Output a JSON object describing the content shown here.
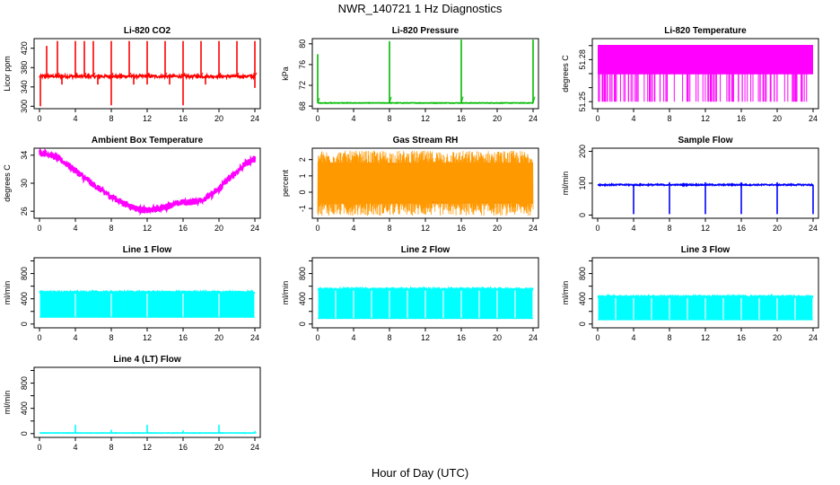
{
  "figure": {
    "title": "NWR_140721  1 Hz Diagnostics",
    "xlabel": "Hour of Day (UTC)"
  },
  "chart_data": [
    {
      "id": "co2",
      "type": "line",
      "title": "Li-820 CO2",
      "ylabel": "Licor ppm",
      "color": "#ff0000",
      "xlim": [
        0,
        24
      ],
      "ylim": [
        295,
        440
      ],
      "xticks": [
        0,
        4,
        8,
        12,
        16,
        20,
        24
      ],
      "yticks": [
        300,
        340,
        380,
        420
      ],
      "baseline": 362,
      "noise": 3,
      "spikes_up": [
        [
          0.8,
          425
        ],
        [
          2.0,
          435
        ],
        [
          4.0,
          435
        ],
        [
          5.0,
          435
        ],
        [
          6.0,
          435
        ],
        [
          8.0,
          435
        ],
        [
          10.0,
          435
        ],
        [
          12.0,
          435
        ],
        [
          14.0,
          435
        ],
        [
          16.0,
          435
        ],
        [
          18.0,
          435
        ],
        [
          20.0,
          435
        ],
        [
          22.0,
          435
        ],
        [
          24.0,
          435
        ]
      ],
      "spikes_down": [
        [
          0.1,
          300
        ],
        [
          2.5,
          345
        ],
        [
          6.5,
          345
        ],
        [
          8.0,
          302
        ],
        [
          10.5,
          345
        ],
        [
          12.0,
          345
        ],
        [
          14.5,
          345
        ],
        [
          16.0,
          302
        ],
        [
          18.5,
          345
        ],
        [
          24.0,
          338
        ]
      ]
    },
    {
      "id": "pressure",
      "type": "line",
      "title": "Li-820 Pressure",
      "ylabel": "kPa",
      "color": "#00bb00",
      "xlim": [
        0,
        24
      ],
      "ylim": [
        67.5,
        81
      ],
      "xticks": [
        0,
        4,
        8,
        12,
        16,
        20,
        24
      ],
      "yticks": [
        68,
        72,
        76,
        80
      ],
      "baseline": 68.6,
      "noise": 0.05,
      "spikes_up": [
        [
          0.0,
          78
        ],
        [
          8.0,
          80.5
        ],
        [
          16.0,
          80.8
        ],
        [
          24.0,
          80.8
        ]
      ],
      "spikes_down": []
    },
    {
      "id": "temperature",
      "type": "line",
      "title": "Li-820 Temperature",
      "ylabel": "degrees C",
      "color": "#ff00ff",
      "xlim": [
        0,
        24
      ],
      "ylim": [
        51.245,
        51.295
      ],
      "xticks": [
        0,
        4,
        8,
        12,
        16,
        20,
        24
      ],
      "yticks": [
        51.25,
        51.26,
        51.27,
        51.28,
        51.29
      ],
      "ytick_labels": [
        "51.25",
        "",
        "",
        "51.28",
        ""
      ],
      "levels": [
        51.25,
        51.27,
        51.29
      ]
    },
    {
      "id": "ambient",
      "type": "line",
      "title": "Ambient Box Temperature",
      "ylabel": "degrees C",
      "color": "#ff00ff",
      "xlim": [
        0,
        24
      ],
      "ylim": [
        25,
        35
      ],
      "xticks": [
        0,
        4,
        8,
        12,
        16,
        20,
        24
      ],
      "yticks": [
        26,
        30,
        34
      ],
      "curve_x": [
        0,
        1,
        2,
        3,
        4,
        5,
        6,
        7,
        8,
        9,
        10,
        11,
        12,
        13,
        14,
        15,
        16,
        17,
        18,
        19,
        20,
        21,
        22,
        23,
        24
      ],
      "curve_y": [
        34.3,
        34.2,
        33.6,
        32.8,
        31.8,
        30.8,
        29.8,
        28.9,
        28.1,
        27.4,
        26.8,
        26.3,
        26.1,
        26.3,
        26.6,
        27.0,
        27.3,
        27.3,
        27.6,
        28.2,
        29.2,
        30.5,
        31.7,
        32.8,
        33.5
      ],
      "noise": 0.45
    },
    {
      "id": "rh",
      "type": "line",
      "title": "Gas Stream RH",
      "ylabel": "percent",
      "color": "#ff9900",
      "xlim": [
        0,
        24
      ],
      "ylim": [
        -1.6,
        2.7
      ],
      "xticks": [
        0,
        4,
        8,
        12,
        16,
        20,
        24
      ],
      "yticks": [
        -1,
        0,
        1,
        2
      ],
      "band": [
        -1.0,
        2.1
      ]
    },
    {
      "id": "sample",
      "type": "line",
      "title": "Sample Flow",
      "ylabel": "ml/min",
      "color": "#0000ff",
      "xlim": [
        0,
        24
      ],
      "ylim": [
        -10,
        210
      ],
      "xticks": [
        0,
        4,
        8,
        12,
        16,
        20,
        24
      ],
      "yticks": [
        0,
        100,
        200
      ],
      "ytick_labels": [
        "0",
        "100",
        "200"
      ],
      "baseline": 95,
      "noise": 2,
      "spikes_up": [
        [
          8.0,
          103
        ],
        [
          12.0,
          103
        ],
        [
          16.0,
          103
        ],
        [
          20.0,
          103
        ]
      ],
      "spikes_down": [
        [
          4.0,
          3
        ],
        [
          8.0,
          3
        ],
        [
          12.0,
          3
        ],
        [
          16.0,
          3
        ],
        [
          20.0,
          3
        ],
        [
          24.0,
          3
        ]
      ]
    },
    {
      "id": "line1",
      "type": "line",
      "title": "Line 1 Flow",
      "ylabel": "ml/min",
      "color": "#00ffff",
      "xlim": [
        0,
        24
      ],
      "ylim": [
        -60,
        1050
      ],
      "xticks": [
        0,
        4,
        8,
        12,
        16,
        20,
        24
      ],
      "yticks": [
        0,
        200,
        400,
        600,
        800,
        1000
      ],
      "ytick_labels": [
        "0",
        "",
        "400",
        "",
        "800",
        ""
      ],
      "band": [
        100,
        510
      ],
      "gaps": [
        0,
        4,
        8,
        12,
        16,
        20,
        24
      ]
    },
    {
      "id": "line2",
      "type": "line",
      "title": "Line 2 Flow",
      "ylabel": "ml/min",
      "color": "#00ffff",
      "xlim": [
        0,
        24
      ],
      "ylim": [
        -60,
        1050
      ],
      "xticks": [
        0,
        4,
        8,
        12,
        16,
        20,
        24
      ],
      "yticks": [
        0,
        200,
        400,
        600,
        800,
        1000
      ],
      "ytick_labels": [
        "0",
        "",
        "400",
        "",
        "800",
        ""
      ],
      "band": [
        80,
        560
      ],
      "gaps": [
        0,
        2,
        4,
        6,
        8,
        10,
        12,
        14,
        16,
        18,
        20,
        22,
        24
      ]
    },
    {
      "id": "line3",
      "type": "line",
      "title": "Line 3 Flow",
      "ylabel": "ml/min",
      "color": "#00ffff",
      "xlim": [
        0,
        24
      ],
      "ylim": [
        -60,
        1050
      ],
      "xticks": [
        0,
        4,
        8,
        12,
        16,
        20,
        24
      ],
      "yticks": [
        0,
        200,
        400,
        600,
        800,
        1000
      ],
      "ytick_labels": [
        "0",
        "",
        "400",
        "",
        "800",
        ""
      ],
      "band": [
        60,
        440
      ],
      "gaps": [
        0,
        2,
        4,
        6,
        8,
        10,
        12,
        14,
        16,
        18,
        20,
        22,
        24
      ]
    },
    {
      "id": "line4",
      "type": "line",
      "title": "Line 4 (LT) Flow",
      "ylabel": "ml/min",
      "color": "#00ffff",
      "xlim": [
        0,
        24
      ],
      "ylim": [
        -60,
        1050
      ],
      "xticks": [
        0,
        4,
        8,
        12,
        16,
        20,
        24
      ],
      "yticks": [
        0,
        200,
        400,
        600,
        800,
        1000
      ],
      "ytick_labels": [
        "0",
        "",
        "400",
        "",
        "800",
        ""
      ],
      "baseline": 10,
      "noise": 3,
      "spikes_up": [
        [
          4.0,
          140
        ],
        [
          8.0,
          60
        ],
        [
          12.0,
          140
        ],
        [
          16.0,
          50
        ],
        [
          20.0,
          140
        ],
        [
          24.0,
          40
        ]
      ],
      "spikes_down": []
    }
  ]
}
